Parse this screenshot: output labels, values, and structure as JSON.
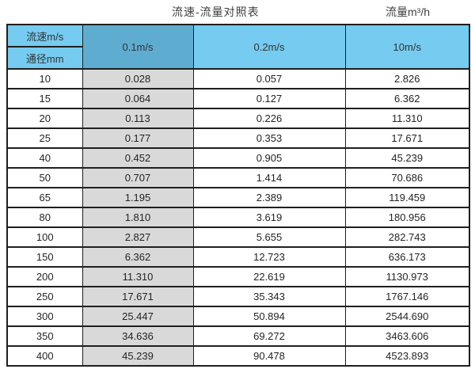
{
  "titles": {
    "left": "流速-流量对照表",
    "right": "流量m³/h"
  },
  "chart_data": {
    "type": "table",
    "title": "流速-流量对照表",
    "flow_unit_label": "流量m³/h",
    "corner_header": {
      "top": "流速m/s",
      "bottom": "通径mm"
    },
    "velocity_columns": [
      "0.1m/s",
      "0.2m/s",
      "10m/s"
    ],
    "diameters_mm": [
      10,
      15,
      20,
      25,
      40,
      50,
      65,
      80,
      100,
      150,
      200,
      250,
      300,
      350,
      400
    ],
    "rows": [
      [
        "10",
        "0.028",
        "0.057",
        "2.826"
      ],
      [
        "15",
        "0.064",
        "0.127",
        "6.362"
      ],
      [
        "20",
        "0.113",
        "0.226",
        "11.310"
      ],
      [
        "25",
        "0.177",
        "0.353",
        "17.671"
      ],
      [
        "40",
        "0.452",
        "0.905",
        "45.239"
      ],
      [
        "50",
        "0.707",
        "1.414",
        "70.686"
      ],
      [
        "65",
        "1.195",
        "2.389",
        "119.459"
      ],
      [
        "80",
        "1.810",
        "3.619",
        "180.956"
      ],
      [
        "100",
        "2.827",
        "5.655",
        "282.743"
      ],
      [
        "150",
        "6.362",
        "12.723",
        "636.173"
      ],
      [
        "200",
        "11.310",
        "22.619",
        "1130.973"
      ],
      [
        "250",
        "17.671",
        "35.343",
        "1767.146"
      ],
      [
        "300",
        "25.447",
        "50.894",
        "2544.690"
      ],
      [
        "350",
        "34.636",
        "69.272",
        "3463.606"
      ],
      [
        "400",
        "45.239",
        "90.478",
        "4523.893"
      ]
    ]
  },
  "colors": {
    "header_cyan": "#75cbf0",
    "header_steel_blue": "#5eadd0",
    "first_value_column_gray": "#d9d9d9",
    "border": "#1f1f1f"
  }
}
